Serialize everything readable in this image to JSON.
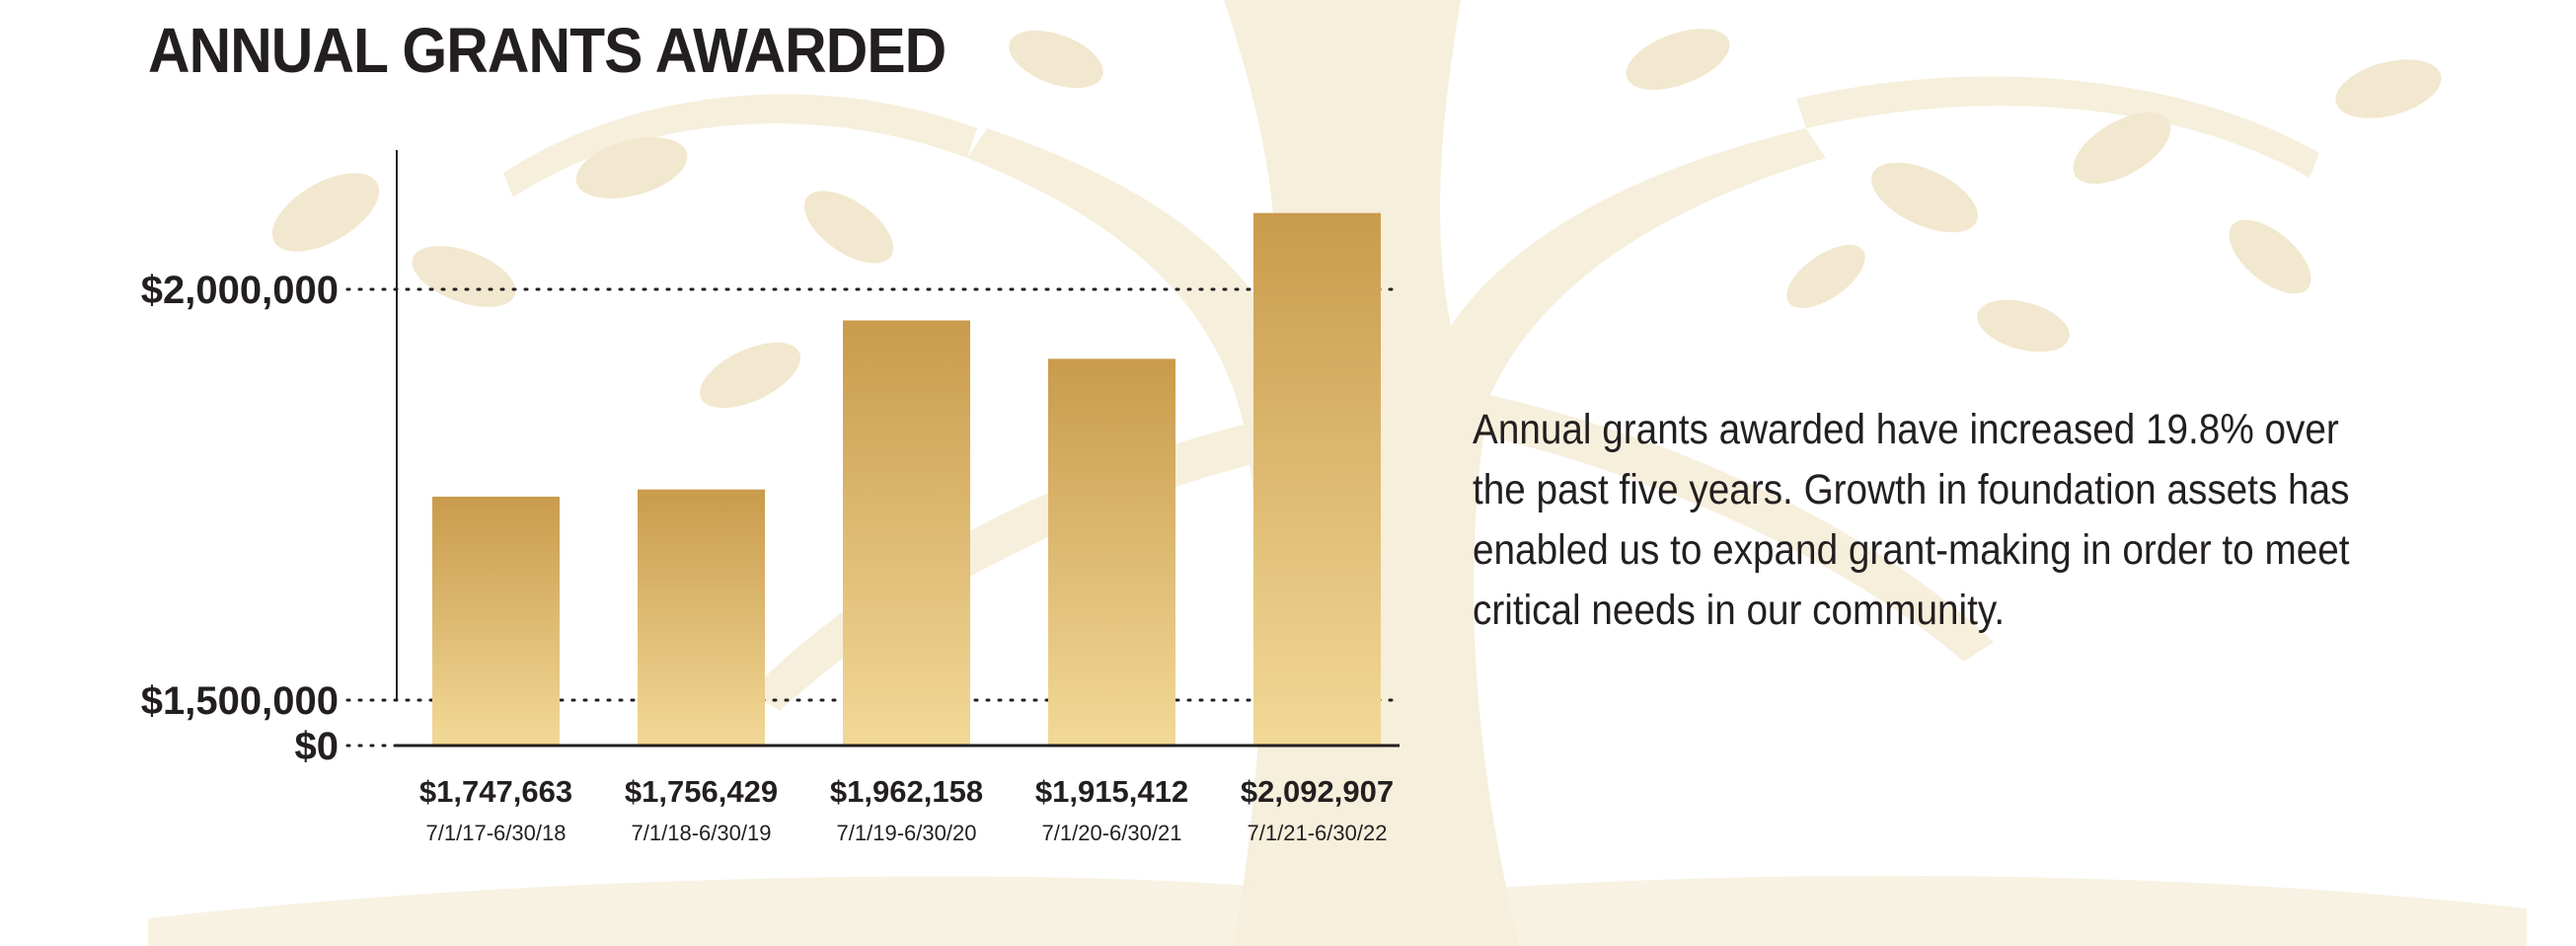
{
  "chart_data": {
    "type": "bar",
    "title": "ANNUAL GRANTS AWARDED",
    "xlabel": "",
    "ylabel": "",
    "categories": [
      "7/1/17-6/30/18",
      "7/1/18-6/30/19",
      "7/1/19-6/30/20",
      "7/1/20-6/30/21",
      "7/1/21-6/30/22"
    ],
    "values": [
      1747663,
      1756429,
      1962158,
      1915412,
      2092907
    ],
    "value_labels": [
      "$1,747,663",
      "$1,756,429",
      "$1,962,158",
      "$1,915,412",
      "$2,092,907"
    ],
    "y_ticks": [
      {
        "value": 0,
        "label": "$0"
      },
      {
        "value": 1500000,
        "label": "$1,500,000"
      },
      {
        "value": 2000000,
        "label": "$2,000,000"
      }
    ],
    "ylim": [
      1450000,
      2160000
    ],
    "axis_break": true,
    "grid": "dotted lines at tick values",
    "bar_color_top": "#c99b4c",
    "bar_color_bottom": "#f2d997"
  },
  "description": "Annual grants awarded have increased 19.8% over the past five years. Growth in foundation assets has enabled us to expand grant-making in order to meet critical needs in our community."
}
